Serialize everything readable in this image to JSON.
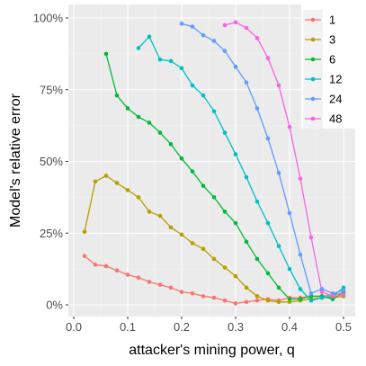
{
  "chart_data": {
    "type": "line",
    "title": "",
    "xlabel": "attacker's mining power, q",
    "ylabel": "Model's relative error",
    "xlim": [
      0.0,
      0.5
    ],
    "ylim": [
      0,
      1
    ],
    "x_ticks": [
      0.0,
      0.1,
      0.2,
      0.3,
      0.4,
      0.5
    ],
    "x_tick_labels": [
      "0.0",
      "0.1",
      "0.2",
      "0.3",
      "0.4",
      "0.5"
    ],
    "y_ticks": [
      0,
      0.25,
      0.5,
      0.75,
      1.0
    ],
    "y_tick_labels": [
      "0%",
      "25%",
      "50%",
      "75%",
      "100%"
    ],
    "grid": true,
    "background": "#ebebeb",
    "legend": {
      "placement": "top-right"
    },
    "series": [
      {
        "name": "1",
        "color": "#F8766D",
        "x": [
          0.02,
          0.04,
          0.06,
          0.08,
          0.1,
          0.12,
          0.14,
          0.16,
          0.18,
          0.2,
          0.22,
          0.24,
          0.26,
          0.28,
          0.3,
          0.32,
          0.34,
          0.36,
          0.38,
          0.4,
          0.42,
          0.44,
          0.46,
          0.48,
          0.5
        ],
        "values": [
          0.17,
          0.14,
          0.135,
          0.12,
          0.105,
          0.095,
          0.08,
          0.07,
          0.06,
          0.045,
          0.04,
          0.03,
          0.025,
          0.015,
          0.005,
          0.01,
          0.015,
          0.02,
          0.015,
          0.025,
          0.025,
          0.03,
          0.03,
          0.035,
          0.04
        ]
      },
      {
        "name": "3",
        "color": "#B79F00",
        "x": [
          0.02,
          0.04,
          0.06,
          0.08,
          0.1,
          0.12,
          0.14,
          0.16,
          0.18,
          0.2,
          0.22,
          0.24,
          0.26,
          0.28,
          0.3,
          0.32,
          0.34,
          0.36,
          0.38,
          0.4,
          0.42,
          0.44,
          0.46,
          0.48,
          0.5
        ],
        "values": [
          0.255,
          0.43,
          0.45,
          0.425,
          0.4,
          0.375,
          0.325,
          0.31,
          0.27,
          0.245,
          0.215,
          0.195,
          0.16,
          0.13,
          0.1,
          0.06,
          0.03,
          0.015,
          0.01,
          0.01,
          0.015,
          0.02,
          0.025,
          0.025,
          0.03
        ]
      },
      {
        "name": "6",
        "color": "#00BA38",
        "x": [
          0.06,
          0.08,
          0.1,
          0.12,
          0.14,
          0.16,
          0.18,
          0.2,
          0.22,
          0.24,
          0.26,
          0.28,
          0.3,
          0.32,
          0.34,
          0.36,
          0.38,
          0.4,
          0.42,
          0.44,
          0.46,
          0.48,
          0.5
        ],
        "values": [
          0.875,
          0.73,
          0.685,
          0.655,
          0.635,
          0.6,
          0.56,
          0.51,
          0.465,
          0.415,
          0.375,
          0.325,
          0.285,
          0.22,
          0.16,
          0.11,
          0.06,
          0.02,
          0.02,
          0.03,
          0.03,
          0.02,
          0.045
        ]
      },
      {
        "name": "12",
        "color": "#00BFC4",
        "x": [
          0.12,
          0.14,
          0.16,
          0.18,
          0.2,
          0.22,
          0.24,
          0.26,
          0.28,
          0.3,
          0.32,
          0.34,
          0.36,
          0.38,
          0.4,
          0.42,
          0.44,
          0.46,
          0.48,
          0.5
        ],
        "values": [
          0.895,
          0.935,
          0.855,
          0.85,
          0.825,
          0.765,
          0.73,
          0.675,
          0.6,
          0.525,
          0.445,
          0.36,
          0.285,
          0.205,
          0.125,
          0.055,
          0.015,
          0.025,
          0.03,
          0.06
        ]
      },
      {
        "name": "24",
        "color": "#619CFF",
        "x": [
          0.2,
          0.22,
          0.24,
          0.26,
          0.28,
          0.3,
          0.32,
          0.34,
          0.36,
          0.38,
          0.4,
          0.42,
          0.44,
          0.46,
          0.48,
          0.5
        ],
        "values": [
          0.98,
          0.97,
          0.94,
          0.92,
          0.885,
          0.83,
          0.775,
          0.685,
          0.58,
          0.46,
          0.32,
          0.175,
          0.04,
          0.055,
          0.04,
          0.05
        ]
      },
      {
        "name": "48",
        "color": "#F564E3",
        "x": [
          0.28,
          0.3,
          0.32,
          0.34,
          0.36,
          0.38,
          0.4,
          0.42,
          0.44,
          0.46,
          0.48,
          0.5
        ],
        "values": [
          0.975,
          0.985,
          0.965,
          0.93,
          0.86,
          0.765,
          0.62,
          0.44,
          0.235,
          0.045,
          0.03,
          0.035
        ]
      }
    ]
  }
}
